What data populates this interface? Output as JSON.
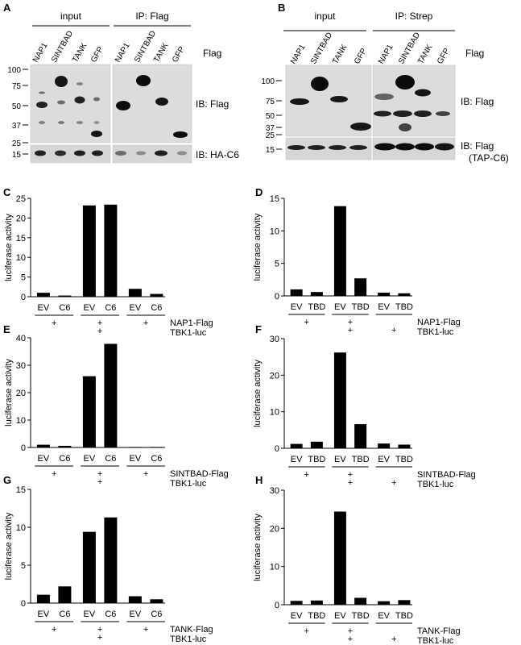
{
  "blots": [
    {
      "panel": "A",
      "group_labels": [
        "input",
        "IP: Flag"
      ],
      "lanes": [
        "NAP1",
        "SINTBAD",
        "TANK",
        "GFP"
      ],
      "row_label": "Flag",
      "markers_top": [
        "100",
        "75",
        "50",
        "37",
        "25"
      ],
      "marker_bottom": "15",
      "ib_top": "IB: Flag",
      "ib_bottom": "IB: HA-C6"
    },
    {
      "panel": "B",
      "group_labels": [
        "input",
        "IP: Strep"
      ],
      "lanes": [
        "NAP1",
        "SINTBAD",
        "TANK",
        "GFP"
      ],
      "row_label": "Flag",
      "markers_top": [
        "100",
        "75",
        "50",
        "37",
        "25"
      ],
      "marker_bottom": "15",
      "ib_top": "IB: Flag",
      "ib_bottom": "IB: Flag",
      "ib_bottom_sub": "(TAP-C6)"
    }
  ],
  "chart_data": [
    {
      "panel": "C",
      "type": "bar",
      "ylabel": "luciferase activity",
      "ylim": [
        0,
        25
      ],
      "yticks": [
        "0",
        "5",
        "10",
        "15",
        "20",
        "25"
      ],
      "categories": [
        "EV",
        "C6",
        "EV",
        "C6",
        "EV",
        "C6"
      ],
      "values": [
        1.0,
        0.3,
        23.2,
        23.4,
        2.0,
        0.7
      ],
      "row1_label": "NAP1-Flag",
      "row1_marks": [
        "+",
        "+",
        "+"
      ],
      "row2_label": "TBK1-luc",
      "row2_marks": [
        "",
        "+",
        ""
      ]
    },
    {
      "panel": "D",
      "type": "bar",
      "ylabel": "luciferase activity",
      "ylim": [
        0,
        15
      ],
      "yticks": [
        "0",
        "5",
        "10",
        "15"
      ],
      "categories": [
        "EV",
        "TBD",
        "EV",
        "TBD",
        "EV",
        "TBD"
      ],
      "values": [
        1.0,
        0.6,
        13.8,
        2.7,
        0.5,
        0.4
      ],
      "row1_label": "NAP1-Flag",
      "row1_marks": [
        "+",
        "+",
        ""
      ],
      "row2_label": "TBK1-luc",
      "row2_marks": [
        "",
        "+",
        "+"
      ]
    },
    {
      "panel": "E",
      "type": "bar",
      "ylabel": "luciferase activity",
      "ylim": [
        0,
        40
      ],
      "yticks": [
        "0",
        "10",
        "20",
        "30",
        "40"
      ],
      "categories": [
        "EV",
        "C6",
        "EV",
        "C6",
        "EV",
        "C6"
      ],
      "values": [
        1.0,
        0.6,
        26.0,
        37.8,
        0.2,
        0.2
      ],
      "row1_label": "SINTBAD-Flag",
      "row1_marks": [
        "+",
        "+",
        "+"
      ],
      "row2_label": "TBK1-luc",
      "row2_marks": [
        "",
        "+",
        ""
      ]
    },
    {
      "panel": "F",
      "type": "bar",
      "ylabel": "luciferase activity",
      "ylim": [
        0,
        30
      ],
      "yticks": [
        "0",
        "10",
        "20",
        "30"
      ],
      "categories": [
        "EV",
        "TBD",
        "EV",
        "TBD",
        "EV",
        "TBD"
      ],
      "values": [
        1.2,
        1.8,
        26.2,
        6.6,
        1.3,
        1.0
      ],
      "row1_label": "SINTBAD-Flag",
      "row1_marks": [
        "+",
        "+",
        ""
      ],
      "row2_label": "TBK1-luc",
      "row2_marks": [
        "",
        "+",
        "+"
      ]
    },
    {
      "panel": "G",
      "type": "bar",
      "ylabel": "luciferase activity",
      "ylim": [
        0,
        15
      ],
      "yticks": [
        "0",
        "5",
        "10",
        "15"
      ],
      "categories": [
        "EV",
        "C6",
        "EV",
        "C6",
        "EV",
        "C6"
      ],
      "values": [
        1.1,
        2.2,
        9.4,
        11.3,
        0.9,
        0.5
      ],
      "row1_label": "TANK-Flag",
      "row1_marks": [
        "+",
        "+",
        "+"
      ],
      "row2_label": "TBK1-luc",
      "row2_marks": [
        "",
        "+",
        ""
      ]
    },
    {
      "panel": "H",
      "type": "bar",
      "ylabel": "luciferase activity",
      "ylim": [
        0,
        30
      ],
      "yticks": [
        "0",
        "10",
        "20",
        "30"
      ],
      "categories": [
        "EV",
        "TBD",
        "EV",
        "TBD",
        "EV",
        "TBD"
      ],
      "values": [
        1.0,
        1.1,
        24.4,
        1.8,
        0.9,
        1.2
      ],
      "row1_label": "TANK-Flag",
      "row1_marks": [
        "+",
        "+",
        ""
      ],
      "row2_label": "TBK1-luc",
      "row2_marks": [
        "",
        "+",
        "+"
      ]
    }
  ]
}
